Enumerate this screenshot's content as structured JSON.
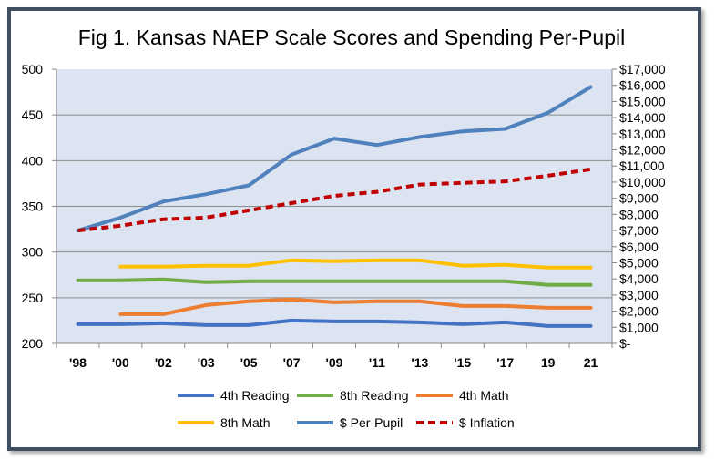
{
  "chart_data": {
    "type": "line",
    "title": "Fig 1. Kansas NAEP Scale Scores and Spending Per-Pupil",
    "categories": [
      "'98",
      "'00",
      "'02",
      "'03",
      "'05",
      "'07",
      "'09",
      "'11",
      "'13",
      "'15",
      "'17",
      "19",
      "21"
    ],
    "y_left": {
      "range": [
        200,
        500
      ],
      "ticks": [
        "500",
        "450",
        "400",
        "350",
        "300",
        "250",
        "200"
      ]
    },
    "y_right": {
      "range": [
        0,
        17000
      ],
      "ticks": [
        "$17,000",
        "$16,000",
        "$15,000",
        "$14,000",
        "$13,000",
        "$12,000",
        "$11,000",
        "$10,000",
        "$9,000",
        "$8,000",
        "$7,000",
        "$6,000",
        "$5,000",
        "$4,000",
        "$3,000",
        "$2,000",
        "$1,000",
        "$-"
      ]
    },
    "grid": true,
    "plot_background": "#dce3f1",
    "legend_position": "bottom",
    "series": [
      {
        "name": "4th Reading",
        "axis": "left",
        "color": "#4472c4",
        "dash": false,
        "values": [
          221,
          221,
          222,
          220,
          220,
          225,
          224,
          224,
          223,
          221,
          223,
          219,
          219
        ]
      },
      {
        "name": "8th Reading",
        "axis": "left",
        "color": "#70ad47",
        "dash": false,
        "values": [
          269,
          269,
          270,
          267,
          268,
          268,
          268,
          268,
          268,
          268,
          268,
          264,
          264
        ]
      },
      {
        "name": "4th Math",
        "axis": "left",
        "color": "#ed7d31",
        "dash": false,
        "values": [
          null,
          232,
          232,
          242,
          246,
          248,
          245,
          246,
          246,
          241,
          241,
          239,
          239
        ]
      },
      {
        "name": "8th Math",
        "axis": "left",
        "color": "#ffc000",
        "dash": false,
        "values": [
          null,
          284,
          284,
          285,
          285,
          291,
          290,
          291,
          291,
          285,
          286,
          283,
          283
        ]
      },
      {
        "name": "$ Per-Pupil",
        "axis": "right",
        "color": "#4f81bd",
        "dash": false,
        "values": [
          7000,
          7800,
          8800,
          9250,
          9800,
          11700,
          12700,
          12300,
          12800,
          13150,
          13300,
          14300,
          15900
        ]
      },
      {
        "name": "$ Inflation",
        "axis": "right",
        "color": "#c00000",
        "dash": true,
        "values": [
          7000,
          7300,
          7700,
          7800,
          8250,
          8700,
          9150,
          9400,
          9850,
          9950,
          10050,
          10400,
          10800
        ]
      }
    ]
  }
}
